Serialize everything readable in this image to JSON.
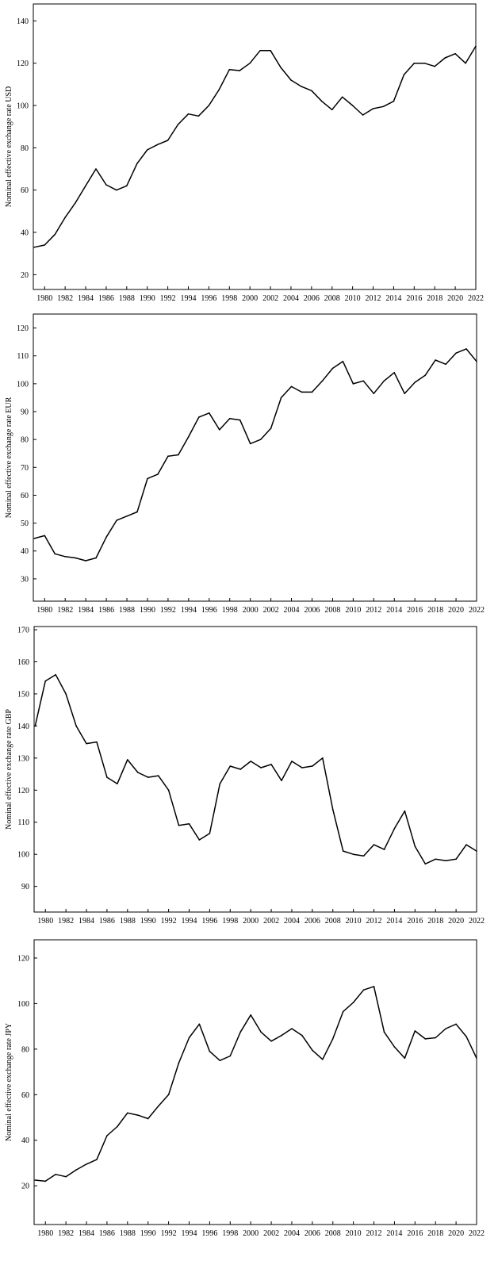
{
  "chart_data": [
    {
      "type": "line",
      "ylabel": "Nominal effective exchange rate USD",
      "xlabel": "",
      "title": "",
      "ylim": [
        13,
        148
      ],
      "yticks": [
        20,
        40,
        60,
        80,
        100,
        120,
        140
      ],
      "xlim": [
        1978.9,
        2022
      ],
      "xticks": [
        1980,
        1982,
        1984,
        1986,
        1988,
        1990,
        1992,
        1994,
        1996,
        1998,
        2000,
        2002,
        2004,
        2006,
        2008,
        2010,
        2012,
        2014,
        2016,
        2018,
        2020,
        2022
      ],
      "x": [
        1979,
        1980,
        1981,
        1982,
        1983,
        1984,
        1985,
        1986,
        1987,
        1988,
        1989,
        1990,
        1991,
        1992,
        1993,
        1994,
        1995,
        1996,
        1997,
        1998,
        1999,
        2000,
        2001,
        2002,
        2003,
        2004,
        2005,
        2006,
        2007,
        2008,
        2009,
        2010,
        2011,
        2012,
        2013,
        2014,
        2015,
        2016,
        2017,
        2018,
        2019,
        2020,
        2021,
        2022
      ],
      "values": [
        33,
        34,
        39,
        47,
        54,
        62,
        70,
        62.5,
        60,
        62,
        72.5,
        79,
        81.5,
        83.5,
        91,
        96,
        95,
        100,
        107.5,
        117,
        116.5,
        120,
        126,
        126,
        118,
        112,
        109,
        107,
        102,
        98,
        104,
        100,
        95.5,
        98.5,
        99.5,
        102,
        114.5,
        120,
        120,
        118.5,
        122.5,
        124.5,
        120,
        128
      ]
    },
    {
      "type": "line",
      "ylabel": "Nominal effective exchange rate EUR",
      "xlabel": "",
      "title": "",
      "ylim": [
        22,
        125
      ],
      "yticks": [
        30,
        40,
        50,
        60,
        70,
        80,
        90,
        100,
        110,
        120
      ],
      "xlim": [
        1978.9,
        2022
      ],
      "xticks": [
        1980,
        1982,
        1984,
        1986,
        1988,
        1990,
        1992,
        1994,
        1996,
        1998,
        2000,
        2002,
        2004,
        2006,
        2008,
        2010,
        2012,
        2014,
        2016,
        2018,
        2020,
        2022
      ],
      "x": [
        1979,
        1980,
        1981,
        1982,
        1983,
        1984,
        1985,
        1986,
        1987,
        1988,
        1989,
        1990,
        1991,
        1992,
        1993,
        1994,
        1995,
        1996,
        1997,
        1998,
        1999,
        2000,
        2001,
        2002,
        2003,
        2004,
        2005,
        2006,
        2007,
        2008,
        2009,
        2010,
        2011,
        2012,
        2013,
        2014,
        2015,
        2016,
        2017,
        2018,
        2019,
        2020,
        2021,
        2022
      ],
      "values": [
        44.5,
        45.5,
        39,
        38,
        37.5,
        36.5,
        37.5,
        45,
        51,
        52.5,
        54,
        66,
        67.5,
        74,
        74.5,
        81,
        88,
        89.5,
        83.5,
        87.5,
        87,
        78.5,
        80,
        84,
        95,
        99,
        97,
        97,
        101,
        105.5,
        108,
        100,
        101,
        96.5,
        101,
        104,
        96.5,
        100.5,
        103,
        108.5,
        107,
        111,
        112.5,
        108
      ]
    },
    {
      "type": "line",
      "ylabel": "Nominal effective exchange rate GBP",
      "xlabel": "",
      "title": "",
      "ylim": [
        82,
        171
      ],
      "yticks": [
        90,
        100,
        110,
        120,
        130,
        140,
        150,
        160,
        170
      ],
      "xlim": [
        1978.9,
        2022
      ],
      "xticks": [
        1980,
        1982,
        1984,
        1986,
        1988,
        1990,
        1992,
        1994,
        1996,
        1998,
        2000,
        2002,
        2004,
        2006,
        2008,
        2010,
        2012,
        2014,
        2016,
        2018,
        2020,
        2022
      ],
      "x": [
        1979,
        1980,
        1981,
        1982,
        1983,
        1984,
        1985,
        1986,
        1987,
        1988,
        1989,
        1990,
        1991,
        1992,
        1993,
        1994,
        1995,
        1996,
        1997,
        1998,
        1999,
        2000,
        2001,
        2002,
        2003,
        2004,
        2005,
        2006,
        2007,
        2008,
        2009,
        2010,
        2011,
        2012,
        2013,
        2014,
        2015,
        2016,
        2017,
        2018,
        2019,
        2020,
        2021,
        2022
      ],
      "values": [
        140,
        154,
        156,
        150,
        140,
        134.5,
        135,
        124,
        122,
        129.5,
        125.5,
        124,
        124.5,
        120,
        109,
        109.5,
        104.5,
        106.5,
        122,
        127.5,
        126.5,
        129,
        127,
        128,
        123,
        129,
        127,
        127.5,
        130,
        114,
        101,
        100,
        99.5,
        103,
        101.5,
        108,
        113.5,
        102.5,
        97,
        98.5,
        98,
        98.5,
        103,
        101
      ]
    },
    {
      "type": "line",
      "ylabel": "Nominal effective exchange rate JPY",
      "xlabel": "",
      "title": "",
      "ylim": [
        3,
        128
      ],
      "yticks": [
        20,
        40,
        60,
        80,
        100,
        120
      ],
      "xlim": [
        1978.9,
        2022
      ],
      "xticks": [
        1980,
        1982,
        1984,
        1986,
        1988,
        1990,
        1992,
        1994,
        1996,
        1998,
        2000,
        2002,
        2004,
        2006,
        2008,
        2010,
        2012,
        2014,
        2016,
        2018,
        2020,
        2022
      ],
      "x": [
        1979,
        1980,
        1981,
        1982,
        1983,
        1984,
        1985,
        1986,
        1987,
        1988,
        1989,
        1990,
        1991,
        1992,
        1993,
        1994,
        1995,
        1996,
        1997,
        1998,
        1999,
        2000,
        2001,
        2002,
        2003,
        2004,
        2005,
        2006,
        2007,
        2008,
        2009,
        2010,
        2011,
        2012,
        2013,
        2014,
        2015,
        2016,
        2017,
        2018,
        2019,
        2020,
        2021,
        2022
      ],
      "values": [
        22.5,
        22,
        25,
        24,
        27,
        29.5,
        31.5,
        42,
        46,
        52,
        51,
        49.5,
        55,
        60,
        74,
        85,
        91,
        79,
        75,
        77,
        87.5,
        95,
        87.5,
        83.5,
        86,
        89,
        86,
        79.5,
        75.5,
        84.5,
        96.5,
        100.5,
        106,
        107.5,
        87.5,
        81,
        76,
        88,
        84.5,
        85,
        89,
        91,
        85.5,
        76
      ]
    }
  ]
}
